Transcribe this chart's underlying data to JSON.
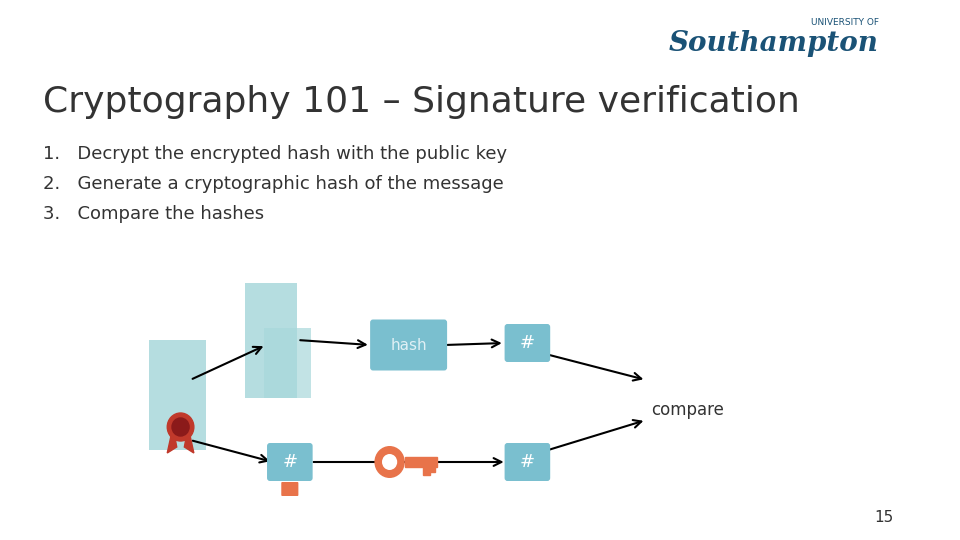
{
  "title": "Cryptography 101 – Signature verification",
  "bullet1": "1.   Decrypt the encrypted hash with the public key",
  "bullet2": "2.   Generate a cryptographic hash of the message",
  "bullet3": "3.   Compare the hashes",
  "page_num": "15",
  "bg_color": "#ffffff",
  "title_color": "#333333",
  "bullet_color": "#333333",
  "soton_color": "#1a5276",
  "soton_text": "Southampton",
  "soton_sub": "UNIVERSITY OF",
  "light_blue": "#7fc4c9",
  "lighter_blue": "#a8d8db",
  "hash_box_color": "#7abfcf",
  "hash_text_color": "#ffffff",
  "arrow_color": "#1a1a1a",
  "key_color": "#e8734a",
  "lock_color": "#e8734a",
  "award_color": "#c0392b",
  "compare_color": "#333333",
  "doc_color": "#a8d8db"
}
